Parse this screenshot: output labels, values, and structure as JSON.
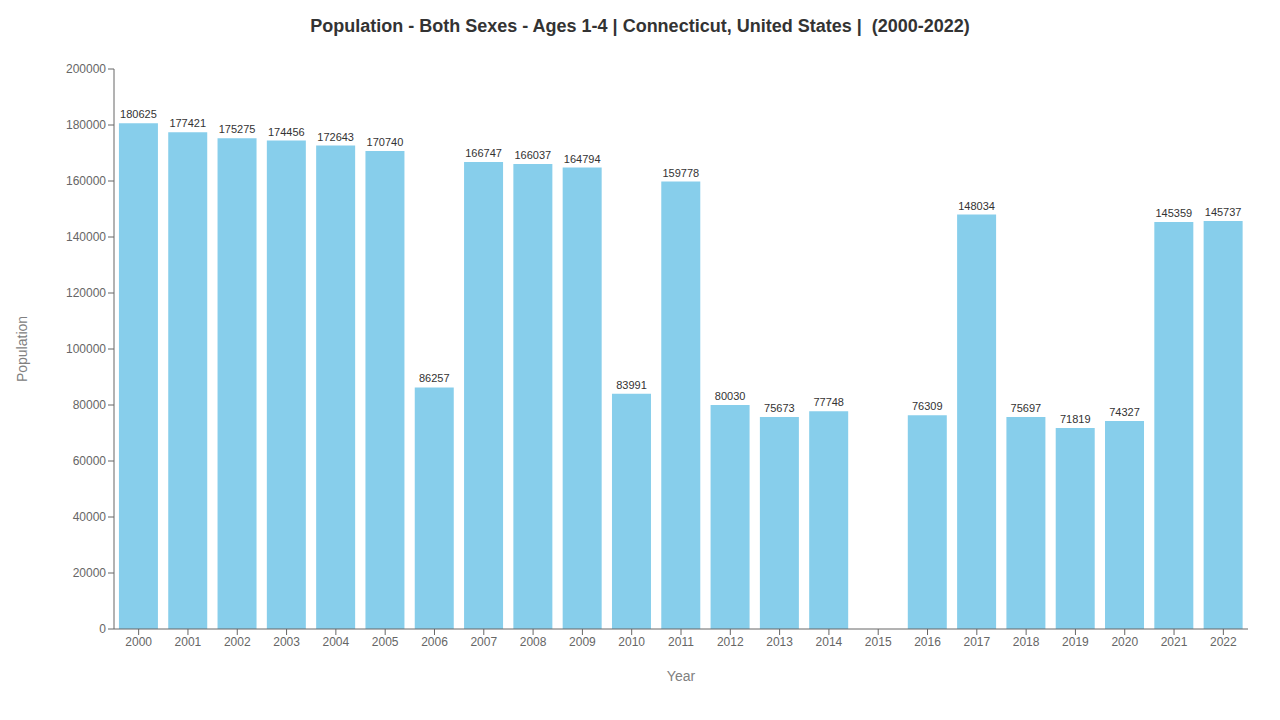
{
  "chart_data": {
    "type": "bar",
    "title": "Population - Both Sexes - Ages 1-4 | Connecticut, United States |  (2000-2022)",
    "x_label": "Year",
    "y_label": "Population",
    "categories": [
      "2000",
      "2001",
      "2002",
      "2003",
      "2004",
      "2005",
      "2006",
      "2007",
      "2008",
      "2009",
      "2010",
      "2011",
      "2012",
      "2013",
      "2014",
      "2015",
      "2016",
      "2017",
      "2018",
      "2019",
      "2020",
      "2021",
      "2022"
    ],
    "values": [
      180625,
      177421,
      175275,
      174456,
      172643,
      170740,
      86257,
      166747,
      166037,
      164794,
      83991,
      159778,
      80030,
      75673,
      77748,
      0,
      76309,
      148034,
      75697,
      71819,
      74327,
      145359,
      145737
    ],
    "color": "#87CEEB",
    "ylim": [
      0,
      200000
    ],
    "yticks": [
      0,
      20000,
      40000,
      60000,
      80000,
      100000,
      120000,
      140000,
      160000,
      180000,
      200000
    ],
    "grid": false,
    "data_labels": true
  }
}
